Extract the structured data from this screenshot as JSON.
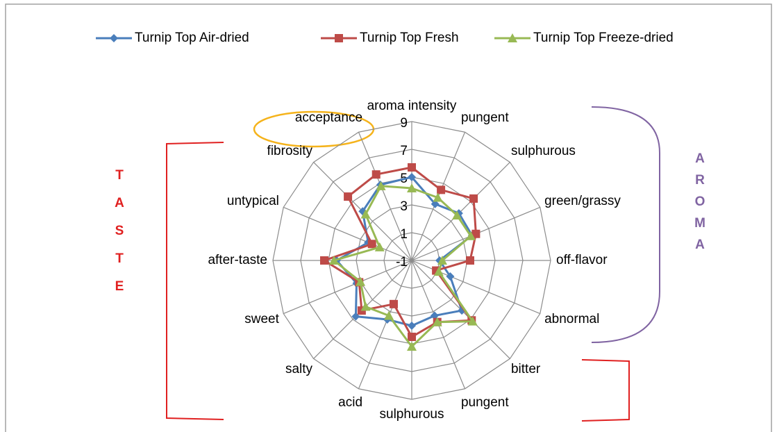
{
  "chart_data": {
    "type": "radar",
    "categories": [
      "aroma intensity",
      "pungent",
      "sulphurous",
      "green/grassy",
      "off-flavor",
      "abnormal",
      "bitter",
      "pungent",
      "sulphurous",
      "acid",
      "salty",
      "sweet",
      "after-taste",
      "untypical",
      "fibrosity",
      "acceptance"
    ],
    "series": [
      {
        "name": "Turnip Top Air-dried",
        "color": "#4a7ebb",
        "marker": "diamond",
        "values": [
          5,
          3.4,
          3.8,
          3.7,
          1.0,
          2.0,
          4.1,
          3.3,
          3.7,
          3.6,
          4.7,
          3.3,
          4.4,
          2.4,
          4.0,
          4.9
        ]
      },
      {
        "name": "Turnip Top Fresh",
        "color": "#be4b48",
        "marker": "square",
        "values": [
          5.7,
          4.5,
          5.3,
          4.0,
          3.2,
          0.9,
          5.1,
          3.8,
          4.5,
          2.4,
          4.1,
          3.1,
          5.3,
          2.1,
          5.5,
          5.7
        ]
      },
      {
        "name": "Turnip Top Freeze-dried",
        "color": "#98b954",
        "marker": "triangle",
        "values": [
          4.2,
          3.9,
          3.6,
          3.6,
          1.2,
          1.1,
          5.2,
          3.8,
          5.2,
          3.3,
          3.7,
          3.0,
          4.6,
          1.5,
          3.7,
          4.8
        ]
      }
    ],
    "rlim": [
      -1,
      9
    ],
    "rticks": [
      -1,
      1,
      3,
      5,
      7,
      9
    ],
    "legend": "top",
    "annotations": {
      "taste": [
        "T",
        "A",
        "S",
        "T",
        "E"
      ],
      "aroma": [
        "A",
        "R",
        "O",
        "M",
        "A"
      ]
    }
  }
}
